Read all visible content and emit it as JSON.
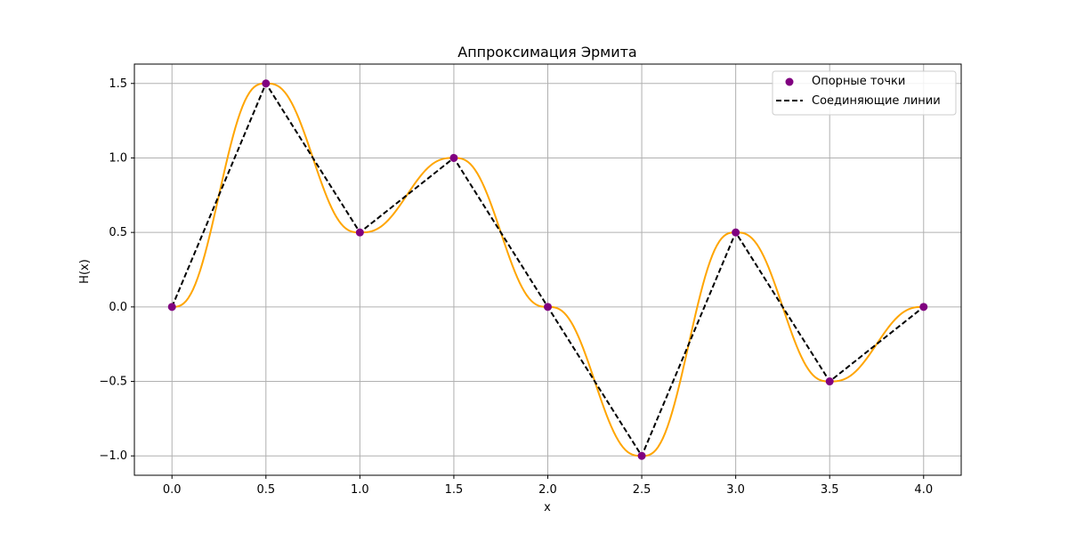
{
  "chart_data": {
    "type": "line",
    "title": "Аппроксимация Эрмита",
    "xlabel": "x",
    "ylabel": "H(x)",
    "xlim": [
      -0.2,
      4.2
    ],
    "ylim": [
      -1.13,
      1.63
    ],
    "xticks": [
      "0.0",
      "0.5",
      "1.0",
      "1.5",
      "2.0",
      "2.5",
      "3.0",
      "3.5",
      "4.0"
    ],
    "yticks": [
      "1.5",
      "1.0",
      "0.5",
      "0.0",
      "−0.5",
      "−1.0"
    ],
    "grid": true,
    "legend_position": "top-right",
    "series": [
      {
        "name": "Опорные точки",
        "kind": "scatter",
        "color": "#800080",
        "x": [
          0.0,
          0.5,
          1.0,
          1.5,
          2.0,
          2.5,
          3.0,
          3.5,
          4.0
        ],
        "y": [
          0.0,
          1.5,
          0.5,
          1.0,
          0.0,
          -1.0,
          0.5,
          -0.5,
          0.0
        ]
      },
      {
        "name": "Соединяющие линии",
        "kind": "dashed-line",
        "color": "#000000",
        "x": [
          0.0,
          0.5,
          1.0,
          1.5,
          2.0,
          2.5,
          3.0,
          3.5,
          4.0
        ],
        "y": [
          0.0,
          1.5,
          0.5,
          1.0,
          0.0,
          -1.0,
          0.5,
          -0.5,
          0.0
        ]
      },
      {
        "kind": "smooth-curve",
        "color": "#FFA500",
        "x": [
          0.0,
          0.5,
          1.0,
          1.5,
          2.0,
          2.5,
          3.0,
          3.5,
          4.0
        ],
        "y": [
          0.0,
          1.5,
          0.5,
          1.0,
          0.0,
          -1.0,
          0.5,
          -0.5,
          0.0
        ]
      }
    ]
  }
}
